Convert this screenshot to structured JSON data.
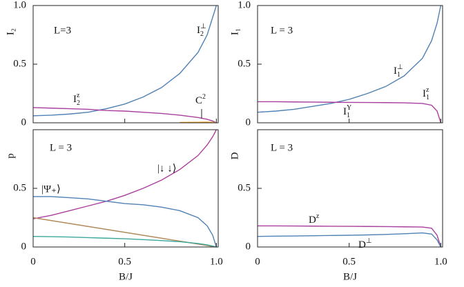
{
  "chart_data": [
    {
      "type": "line",
      "ylabel": "I₂",
      "annotations": [
        "L=3"
      ],
      "x": [
        0,
        0.1,
        0.2,
        0.3,
        0.4,
        0.5,
        0.6,
        0.7,
        0.8,
        0.9,
        0.95,
        0.98,
        1.0
      ],
      "xlim": [
        0,
        1.01
      ],
      "ylim": [
        0,
        1
      ],
      "xticks": [
        0,
        0.5,
        1
      ],
      "xtick_labels": false,
      "yticks": [
        0,
        0.5,
        {
          "value": 1,
          "label": "1.0"
        }
      ],
      "series": [
        {
          "name": {
            "text": "I",
            "sub": "2",
            "sup": "⊥"
          },
          "color": "#4f81b4",
          "values": [
            0.06,
            0.065,
            0.075,
            0.09,
            0.12,
            0.16,
            0.22,
            0.3,
            0.42,
            0.6,
            0.75,
            0.9,
            1.0
          ]
        },
        {
          "name": {
            "text": "I",
            "sub": "2",
            "sup": "z"
          },
          "color": "#a93f9e",
          "values": [
            0.13,
            0.125,
            0.12,
            0.115,
            0.105,
            0.1,
            0.09,
            0.08,
            0.065,
            0.045,
            0.03,
            0.015,
            0
          ]
        },
        {
          "name": {
            "text": "C",
            "sup": "2"
          },
          "color": "#f5a623",
          "values": [
            null,
            null,
            null,
            null,
            null,
            null,
            null,
            null,
            0.003,
            0.005,
            0.006,
            0.004,
            0
          ]
        }
      ]
    },
    {
      "type": "line",
      "ylabel": "p",
      "xlabel": "B/J",
      "annotations": [
        "L = 3"
      ],
      "x": [
        0,
        0.1,
        0.2,
        0.3,
        0.4,
        0.5,
        0.6,
        0.7,
        0.8,
        0.9,
        0.95,
        0.98,
        1.0
      ],
      "xlim": [
        0,
        1.01
      ],
      "ylim": [
        0,
        1
      ],
      "xticks": [
        0,
        0.5,
        {
          "value": 1,
          "label": "1.0"
        }
      ],
      "xtick_labels": true,
      "yticks": [
        0,
        0.5
      ],
      "series": [
        {
          "name": "|↓ ↓⟩",
          "color": "#a93f9e",
          "values": [
            0.24,
            0.27,
            0.31,
            0.35,
            0.39,
            0.44,
            0.5,
            0.57,
            0.66,
            0.78,
            0.87,
            0.94,
            1.0
          ]
        },
        {
          "name": "|Ψ₊⟩",
          "color": "#4f81b4",
          "values": [
            0.43,
            0.43,
            0.42,
            0.41,
            0.39,
            0.37,
            0.36,
            0.34,
            0.31,
            0.25,
            0.18,
            0.1,
            0
          ]
        },
        {
          "color": "#b08a5a",
          "values": [
            0.25,
            0.225,
            0.2,
            0.175,
            0.15,
            0.125,
            0.1,
            0.075,
            0.05,
            0.025,
            0.0125,
            0.005,
            0
          ]
        },
        {
          "color": "#3aa89a",
          "values": [
            0.09,
            0.088,
            0.085,
            0.08,
            0.075,
            0.07,
            0.063,
            0.055,
            0.045,
            0.03,
            0.018,
            0.008,
            0
          ]
        }
      ]
    },
    {
      "type": "line",
      "ylabel": "I₁",
      "annotations": [
        "L = 3",
        {
          "text": "I",
          "sub": "1",
          "sup": "Y"
        }
      ],
      "x": [
        0,
        0.1,
        0.2,
        0.3,
        0.4,
        0.5,
        0.6,
        0.7,
        0.8,
        0.9,
        0.95,
        0.98,
        1.0
      ],
      "xlim": [
        0,
        1.01
      ],
      "ylim": [
        0,
        1
      ],
      "xticks": [
        0,
        0.5,
        1
      ],
      "xtick_labels": false,
      "yticks": [
        0,
        0.5,
        {
          "value": 1,
          "label": "1.0"
        }
      ],
      "series": [
        {
          "name": {
            "text": "I",
            "sub": "1",
            "sup": "⊥"
          },
          "color": "#4f81b4",
          "values": [
            0.09,
            0.1,
            0.115,
            0.14,
            0.165,
            0.2,
            0.25,
            0.31,
            0.4,
            0.55,
            0.7,
            0.85,
            1.0
          ]
        },
        {
          "name": {
            "text": "I",
            "sub": "1",
            "sup": "z"
          },
          "color": "#a93f9e",
          "values": [
            0.18,
            0.18,
            0.178,
            0.177,
            0.175,
            0.174,
            0.173,
            0.172,
            0.17,
            0.165,
            0.15,
            0.1,
            0
          ]
        }
      ]
    },
    {
      "type": "line",
      "ylabel": "D",
      "xlabel": "B/J",
      "annotations": [
        "L = 3"
      ],
      "x": [
        0,
        0.1,
        0.2,
        0.3,
        0.4,
        0.5,
        0.6,
        0.7,
        0.8,
        0.9,
        0.95,
        0.98,
        1.0
      ],
      "xlim": [
        0,
        1.01
      ],
      "ylim": [
        0,
        1
      ],
      "xticks": [
        0,
        0.5,
        {
          "value": 1,
          "label": "1.0"
        }
      ],
      "xtick_labels": true,
      "yticks": [
        0,
        0.5
      ],
      "series": [
        {
          "name": {
            "text": "D",
            "sup": "z"
          },
          "color": "#a93f9e",
          "values": [
            0.18,
            0.18,
            0.179,
            0.178,
            0.177,
            0.176,
            0.175,
            0.174,
            0.172,
            0.17,
            0.16,
            0.1,
            0
          ]
        },
        {
          "name": {
            "text": "D",
            "sup": "⊥"
          },
          "color": "#4f81b4",
          "values": [
            0.09,
            0.092,
            0.094,
            0.096,
            0.098,
            0.1,
            0.103,
            0.107,
            0.113,
            0.12,
            0.11,
            0.06,
            0
          ]
        }
      ]
    }
  ]
}
